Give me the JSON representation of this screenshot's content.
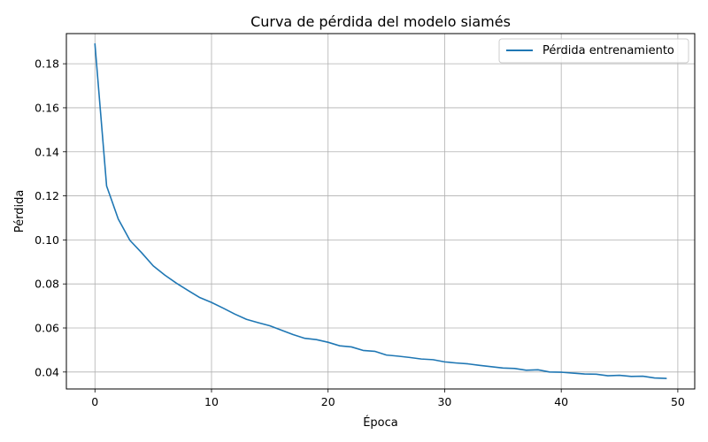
{
  "chart_data": {
    "type": "line",
    "title": "Curva de pérdida del modelo siamés",
    "xlabel": "Época",
    "ylabel": "Pérdida",
    "xlim": [
      -2.45,
      51.45
    ],
    "ylim": [
      0.0323,
      0.1937
    ],
    "xticks": [
      0,
      10,
      20,
      30,
      40,
      50
    ],
    "xtick_labels": [
      "0",
      "10",
      "20",
      "30",
      "40",
      "50"
    ],
    "yticks": [
      0.04,
      0.06,
      0.08,
      0.1,
      0.12,
      0.14,
      0.16,
      0.18
    ],
    "ytick_labels": [
      "0.04",
      "0.06",
      "0.08",
      "0.10",
      "0.12",
      "0.14",
      "0.16",
      "0.18"
    ],
    "grid": true,
    "legend_position": "top-right",
    "series": [
      {
        "name": "Pérdida entrenamiento",
        "color": "#1f77b4",
        "x": [
          0,
          1,
          2,
          3,
          4,
          5,
          6,
          7,
          8,
          9,
          10,
          11,
          12,
          13,
          14,
          15,
          16,
          17,
          18,
          19,
          20,
          21,
          22,
          23,
          24,
          25,
          26,
          27,
          28,
          29,
          30,
          31,
          32,
          33,
          34,
          35,
          36,
          37,
          38,
          39,
          40,
          41,
          42,
          43,
          44,
          45,
          46,
          47,
          48,
          49
        ],
        "values": [
          0.189,
          0.1245,
          0.1095,
          0.0998,
          0.0942,
          0.0882,
          0.084,
          0.0803,
          0.077,
          0.0738,
          0.0716,
          0.069,
          0.0663,
          0.0639,
          0.0624,
          0.061,
          0.059,
          0.057,
          0.0553,
          0.0547,
          0.0535,
          0.0519,
          0.0514,
          0.0498,
          0.0494,
          0.0477,
          0.0472,
          0.0466,
          0.0459,
          0.0456,
          0.0446,
          0.0441,
          0.0437,
          0.043,
          0.0424,
          0.0418,
          0.0416,
          0.0408,
          0.041,
          0.04,
          0.0399,
          0.0395,
          0.0391,
          0.039,
          0.0383,
          0.0385,
          0.038,
          0.0381,
          0.0373,
          0.0371
        ]
      }
    ]
  }
}
